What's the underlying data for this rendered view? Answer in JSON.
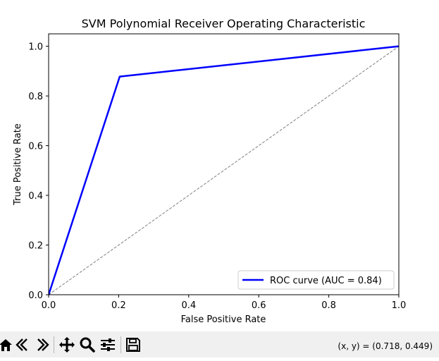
{
  "chart_data": {
    "type": "line",
    "title": "SVM Polynomial Receiver Operating Characteristic",
    "xlabel": "False Positive Rate",
    "ylabel": "True Positive Rate",
    "xlim": [
      0.0,
      1.0
    ],
    "ylim": [
      0.0,
      1.05
    ],
    "xticks": [
      "0.0",
      "0.2",
      "0.4",
      "0.6",
      "0.8",
      "1.0"
    ],
    "yticks": [
      "0.0",
      "0.2",
      "0.4",
      "0.6",
      "0.8",
      "1.0"
    ],
    "grid": false,
    "legend_position": "lower-right",
    "series": [
      {
        "name": "ROC curve (AUC = 0.84)",
        "color": "#0000ff",
        "style": "solid",
        "x": [
          0.0,
          0.203,
          1.0
        ],
        "y": [
          0.0,
          0.878,
          1.0
        ]
      },
      {
        "color": "#808080",
        "style": "dashed",
        "x": [
          0.0,
          1.0
        ],
        "y": [
          0.0,
          1.0
        ]
      }
    ]
  },
  "toolbar": {
    "icons": [
      "home-icon",
      "back-arrow-icon",
      "forward-arrow-icon",
      "pan-icon",
      "zoom-icon",
      "configure-subplots-icon",
      "save-icon"
    ],
    "coords_text": "(x, y) = (0.718, 0.449)"
  }
}
